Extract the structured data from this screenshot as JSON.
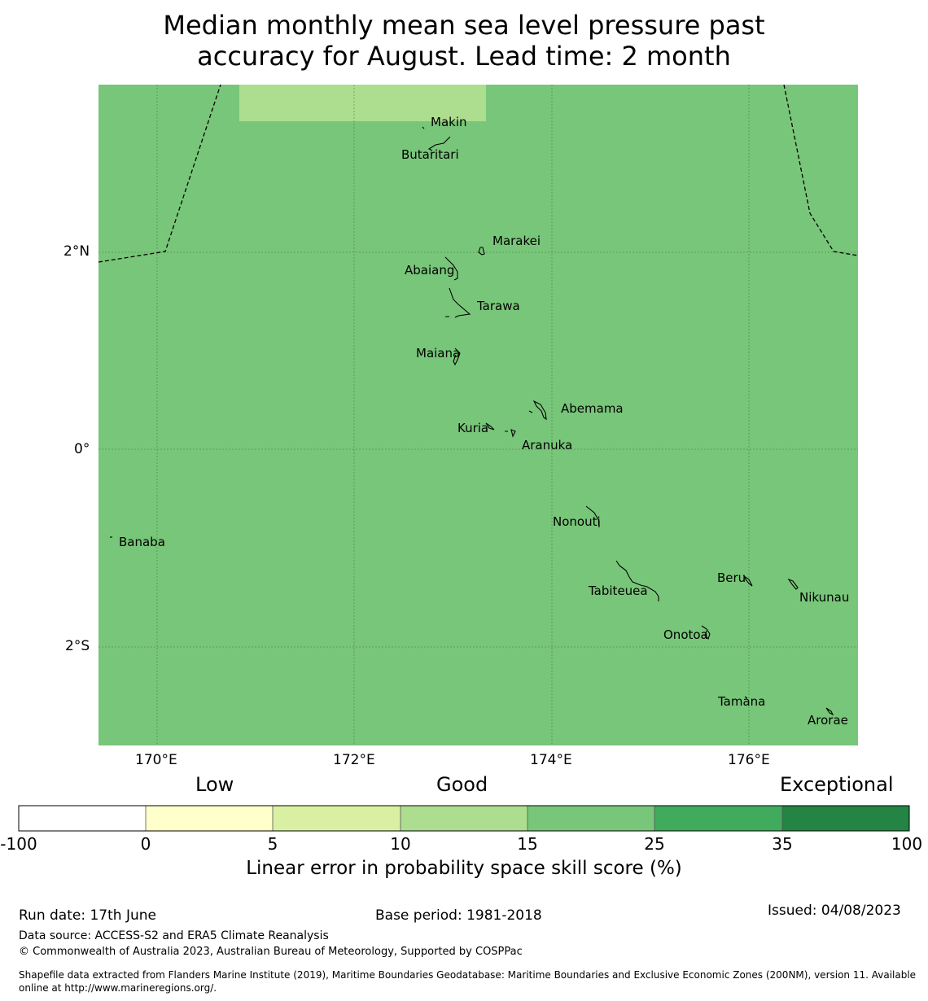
{
  "title": {
    "line1": "Median monthly mean sea level pressure past",
    "line2": "accuracy for August. Lead time: 2 month"
  },
  "map": {
    "lat_labels": [
      "2°N",
      "0°",
      "2°S"
    ],
    "lon_labels": [
      "170°E",
      "172°E",
      "174°E",
      "176°E"
    ],
    "background_color": "#78c679",
    "highlight_color": "#addd8e",
    "islands": [
      {
        "name": "Makin"
      },
      {
        "name": "Butaritari"
      },
      {
        "name": "Marakei"
      },
      {
        "name": "Abaiang"
      },
      {
        "name": "Tarawa"
      },
      {
        "name": "Maiana"
      },
      {
        "name": "Abemama"
      },
      {
        "name": "Kuria"
      },
      {
        "name": "Aranuka"
      },
      {
        "name": "Nonouti"
      },
      {
        "name": "Banaba"
      },
      {
        "name": "Tabiteuea"
      },
      {
        "name": "Beru"
      },
      {
        "name": "Nikunau"
      },
      {
        "name": "Onotoa"
      },
      {
        "name": "Tamana"
      },
      {
        "name": "Arorae"
      }
    ]
  },
  "colorbar": {
    "categories": [
      "Low",
      "Good",
      "Exceptional"
    ],
    "ticks": [
      "-100",
      "0",
      "5",
      "10",
      "15",
      "25",
      "35",
      "100"
    ],
    "colors": [
      "#ffffff",
      "#ffffcc",
      "#d9f0a3",
      "#addd8e",
      "#78c679",
      "#41ab5d",
      "#238443"
    ],
    "label": "Linear error in probability space skill score (%)"
  },
  "footer": {
    "run_date": "Run date: 17th June",
    "base_period": "Base period: 1981-2018",
    "issued": "Issued: 04/08/2023",
    "data_source": "Data source: ACCESS-S2 and ERA5 Climate Reanalysis",
    "copyright": "© Commonwealth of Australia 2023, Australian Bureau of Meteorology, Supported by COSPPac",
    "shapefile_line1": "Shapefile data extracted from Flanders Marine Institute (2019), Maritime Boundaries Geodatabase: Maritime Boundaries and Exclusive Economic Zones (200NM), version 11. Available",
    "shapefile_line2": "online at http://www.marineregions.org/."
  }
}
